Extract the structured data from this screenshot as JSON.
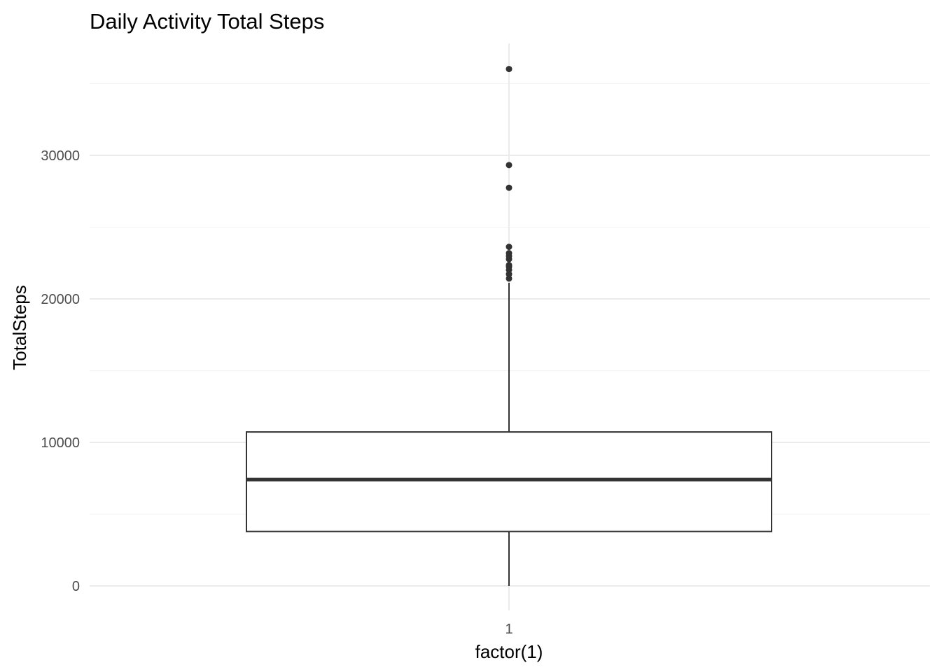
{
  "chart_data": {
    "type": "boxplot",
    "title": "Daily Activity Total Steps",
    "xlabel": "factor(1)",
    "ylabel": "TotalSteps",
    "categories": [
      "1"
    ],
    "ylim": [
      -1800,
      37200
    ],
    "yticks": [
      0,
      10000,
      20000,
      30000
    ],
    "yticks_minor": [
      5000,
      15000,
      25000,
      35000
    ],
    "grid": true,
    "box": {
      "category": "1",
      "whisker_low": 0,
      "q1": 3790,
      "median": 7406,
      "q3": 10727,
      "whisker_high": 21129,
      "outliers": [
        36019,
        29326,
        27745,
        23629,
        23186,
        22988,
        22770,
        22359,
        22244,
        22026,
        21727,
        21420
      ]
    }
  }
}
